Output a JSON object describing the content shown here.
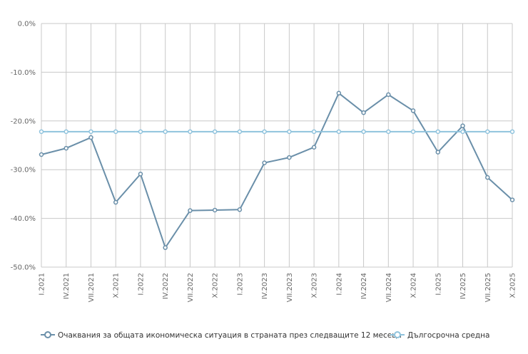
{
  "chart_data": {
    "type": "line",
    "title": "",
    "xlabel": "",
    "ylabel": "",
    "categories": [
      "I.2021",
      "IV.2021",
      "VII.2021",
      "X.2021",
      "I.2022",
      "IV.2022",
      "VII.2022",
      "X.2022",
      "I.2023",
      "IV.2023",
      "VII.2023",
      "X.2023",
      "I.2024",
      "IV.2024",
      "VII.2024",
      "X.2024",
      "I.2025",
      "IV.2025",
      "VII.2025",
      "X.2025"
    ],
    "ylim": [
      -50,
      0
    ],
    "y_ticks": [
      0,
      -10,
      -20,
      -30,
      -40,
      -50
    ],
    "y_tick_labels": [
      "0.0%",
      "-10.0%",
      "-20.0%",
      "-30.0%",
      "-40.0%",
      "-50.0%"
    ],
    "grid": true,
    "legend_position": "bottom",
    "series": [
      {
        "name": "Очаквания за общата икономическа ситуация в страната през следващите 12 месеца",
        "color": "#6a8fa9",
        "values": [
          -26.9,
          -25.6,
          -23.4,
          -36.7,
          -30.9,
          -46.0,
          -38.4,
          -38.3,
          -38.2,
          -28.6,
          -27.5,
          -25.4,
          -14.3,
          -18.3,
          -14.6,
          -17.9,
          -26.4,
          -21.0,
          -31.6,
          -36.2
        ]
      },
      {
        "name": "Дългосрочна средна",
        "color": "#8fc3dd",
        "values": [
          -22.2,
          -22.2,
          -22.2,
          -22.2,
          -22.2,
          -22.2,
          -22.2,
          -22.2,
          -22.2,
          -22.2,
          -22.2,
          -22.2,
          -22.2,
          -22.2,
          -22.2,
          -22.2,
          -22.2,
          -22.2,
          -22.2,
          -22.2
        ]
      }
    ]
  }
}
